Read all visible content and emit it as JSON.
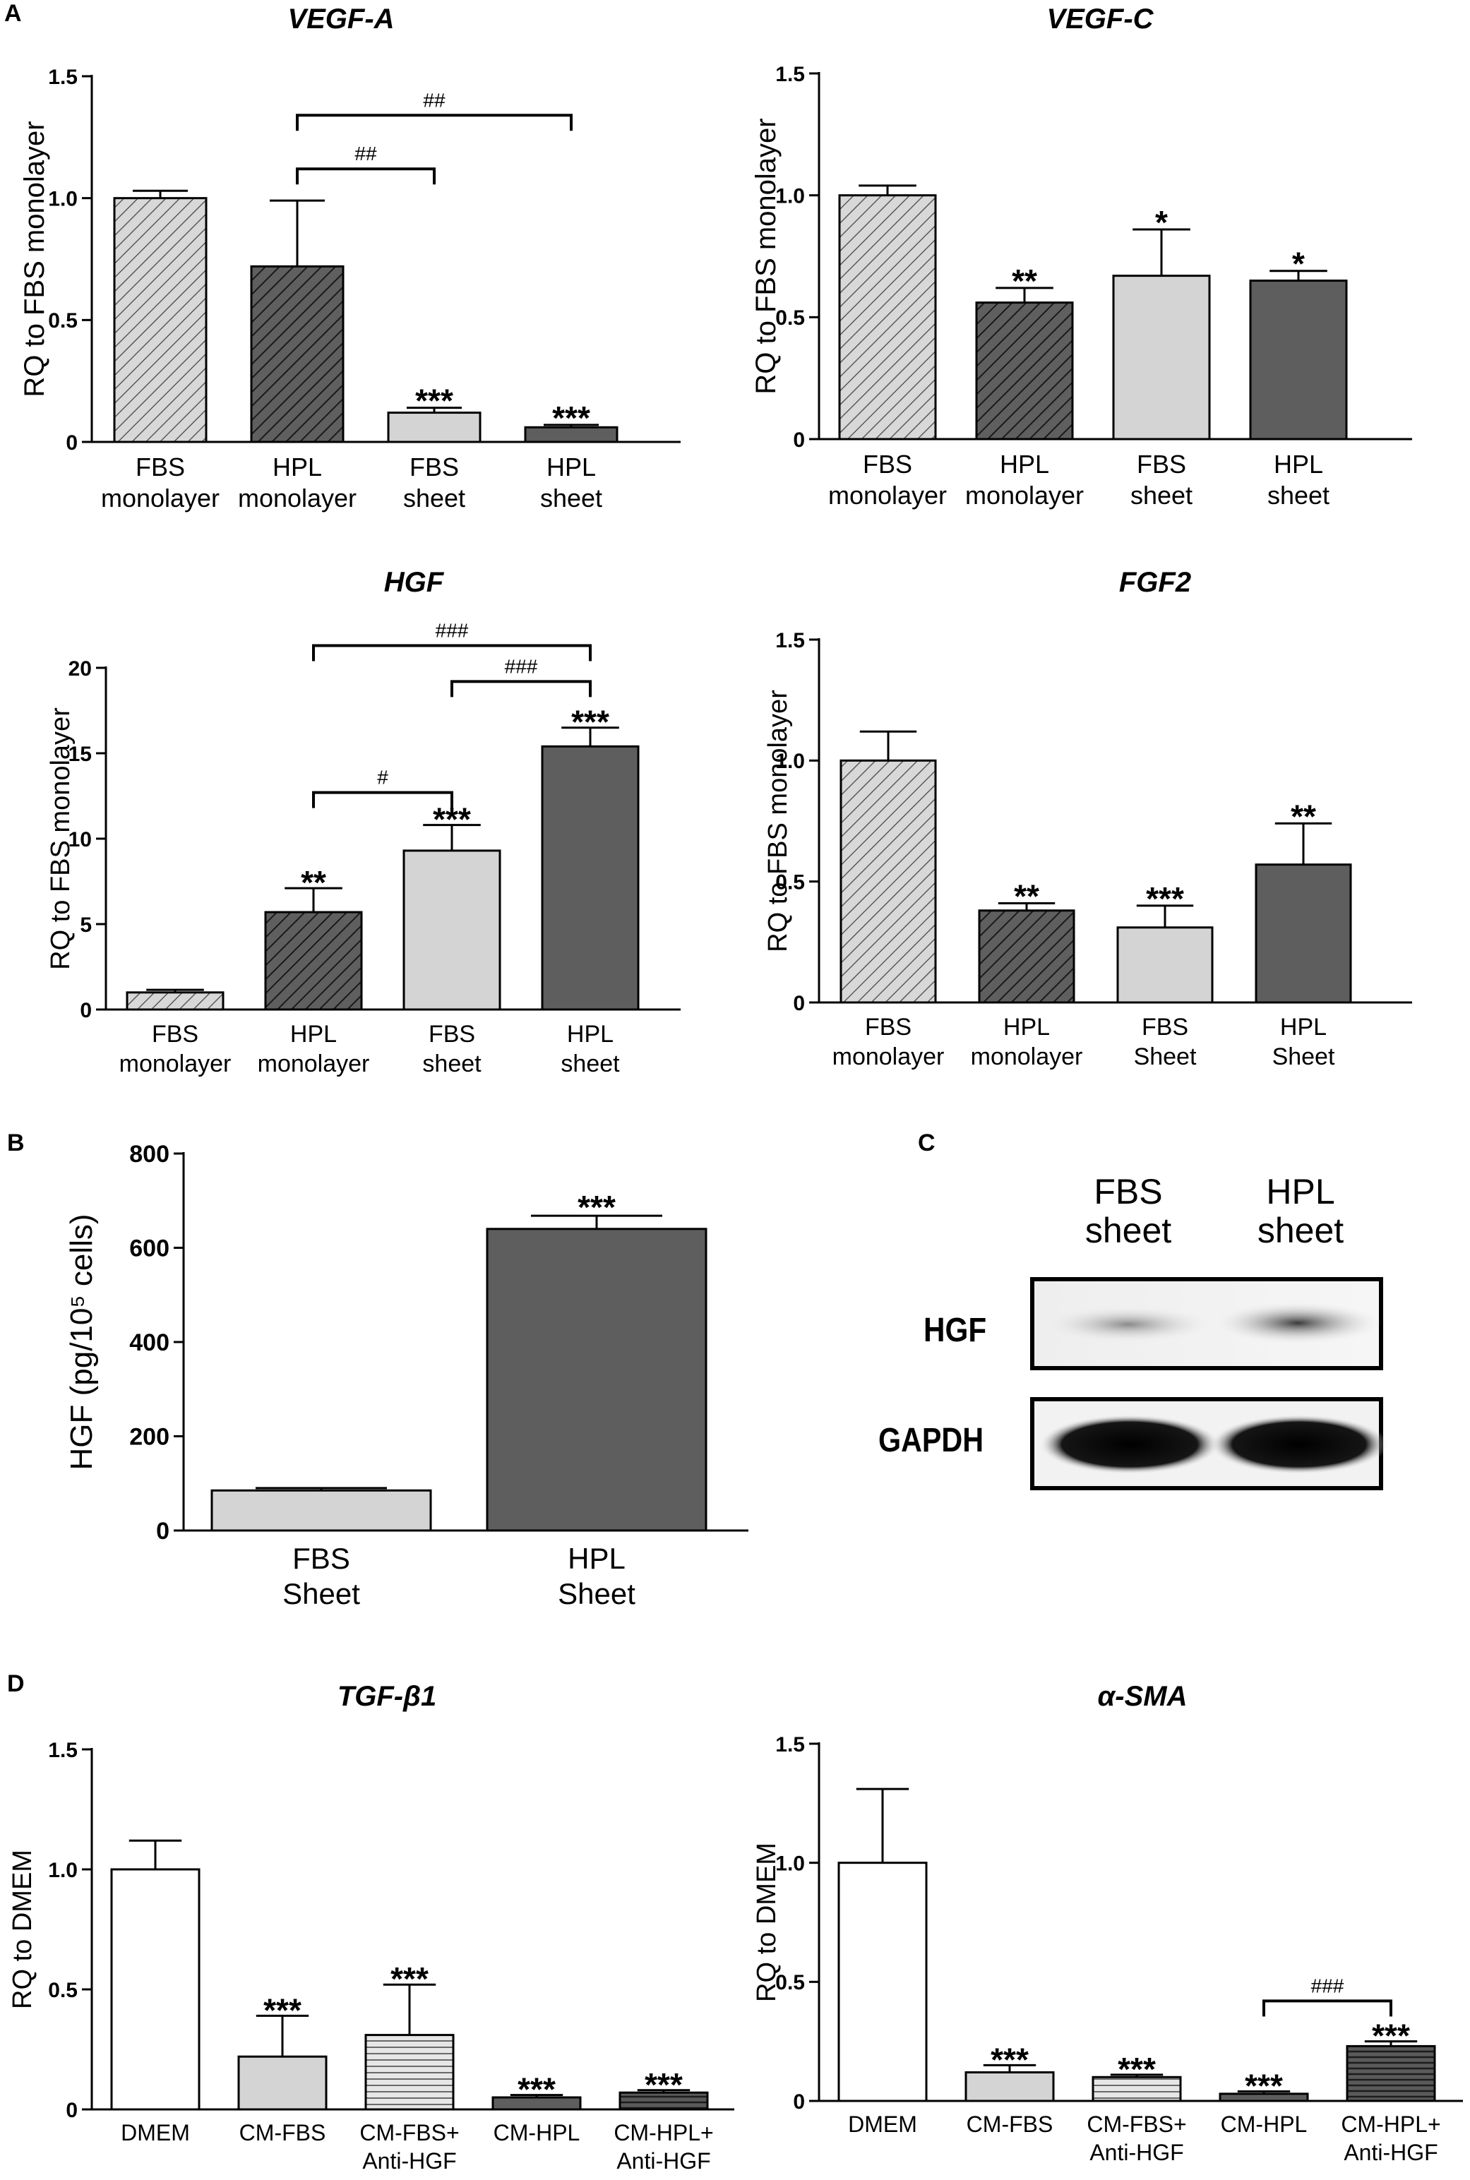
{
  "panels": {
    "A": "A",
    "B": "B",
    "C": "C",
    "D": "D"
  },
  "western_blot": {
    "columns": [
      "FBS sheet",
      "HPL sheet"
    ],
    "col_lines": [
      [
        "FBS",
        "sheet"
      ],
      [
        "HPL",
        "sheet"
      ]
    ],
    "rows": [
      "HGF",
      "GAPDH"
    ]
  },
  "chart_data": [
    {
      "id": "vegfa",
      "type": "bar",
      "title": "VEGF-A",
      "ylabel": "RQ to FBS monolayer",
      "ylim": [
        0,
        1.5
      ],
      "yticks": [
        0,
        0.5,
        1.0,
        1.5
      ],
      "ytick_labels": [
        "0",
        "0.5",
        "1.0",
        "1.5"
      ],
      "categories": [
        [
          "FBS",
          "monolayer"
        ],
        [
          "HPL",
          "monolayer"
        ],
        [
          "FBS",
          "sheet"
        ],
        [
          "HPL",
          "sheet"
        ]
      ],
      "values": [
        1.0,
        0.72,
        0.12,
        0.06
      ],
      "errors": [
        0.03,
        0.27,
        0.02,
        0.01
      ],
      "patterns": [
        "hatch-light",
        "hatch-dark",
        "light",
        "dark"
      ],
      "stars": [
        "",
        "",
        "***",
        "***"
      ],
      "brackets": [
        {
          "from": 1,
          "to": 3,
          "label": "##",
          "level": 1.34
        },
        {
          "from": 1,
          "to": 2,
          "label": "##",
          "level": 1.12
        }
      ]
    },
    {
      "id": "vegfc",
      "type": "bar",
      "title": "VEGF-C",
      "ylabel": "RQ to FBS monolayer",
      "ylim": [
        0,
        1.5
      ],
      "yticks": [
        0,
        0.5,
        1.0,
        1.5
      ],
      "ytick_labels": [
        "0",
        "0.5",
        "1.0",
        "1.5"
      ],
      "categories": [
        [
          "FBS",
          "monolayer"
        ],
        [
          "HPL",
          "monolayer"
        ],
        [
          "FBS",
          "sheet"
        ],
        [
          "HPL",
          "sheet"
        ]
      ],
      "values": [
        1.0,
        0.56,
        0.67,
        0.65
      ],
      "errors": [
        0.04,
        0.06,
        0.19,
        0.04
      ],
      "patterns": [
        "hatch-light",
        "hatch-dark",
        "light",
        "dark"
      ],
      "stars": [
        "",
        "**",
        "*",
        "*"
      ],
      "brackets": []
    },
    {
      "id": "hgf",
      "type": "bar",
      "title": "HGF",
      "ylabel": "RQ to FBS monolayer",
      "ylim": [
        0,
        20
      ],
      "yticks": [
        0,
        5,
        10,
        15,
        20
      ],
      "ytick_labels": [
        "0",
        "5",
        "10",
        "15",
        "20"
      ],
      "categories": [
        [
          "FBS",
          "monolayer"
        ],
        [
          "HPL",
          "monolayer"
        ],
        [
          "FBS",
          "sheet"
        ],
        [
          "HPL",
          "sheet"
        ]
      ],
      "values": [
        1.0,
        5.7,
        9.3,
        15.4
      ],
      "errors": [
        0.15,
        1.4,
        1.5,
        1.1
      ],
      "patterns": [
        "hatch-light",
        "hatch-dark",
        "light",
        "dark"
      ],
      "stars": [
        "",
        "**",
        "***",
        "***"
      ],
      "brackets": [
        {
          "from": 1,
          "to": 3,
          "label": "###",
          "level": 21.3
        },
        {
          "from": 2,
          "to": 3,
          "label": "###",
          "level": 19.2
        },
        {
          "from": 1,
          "to": 2,
          "label": "#",
          "level": 12.7
        }
      ]
    },
    {
      "id": "fgf2",
      "type": "bar",
      "title": "FGF2",
      "ylabel": "RQ to FBS monolayer",
      "ylim": [
        0,
        1.5
      ],
      "yticks": [
        0,
        0.5,
        1.0,
        1.5
      ],
      "ytick_labels": [
        "0",
        "0.5",
        "1.0",
        "1.5"
      ],
      "categories": [
        [
          "FBS",
          "monolayer"
        ],
        [
          "HPL",
          "monolayer"
        ],
        [
          "FBS",
          "Sheet"
        ],
        [
          "HPL",
          "Sheet"
        ]
      ],
      "values": [
        1.0,
        0.38,
        0.31,
        0.57
      ],
      "errors": [
        0.12,
        0.03,
        0.09,
        0.17
      ],
      "patterns": [
        "hatch-light",
        "hatch-dark",
        "light",
        "dark"
      ],
      "stars": [
        "",
        "**",
        "***",
        "**"
      ],
      "brackets": []
    },
    {
      "id": "hgf_elisa",
      "type": "bar",
      "title": "",
      "ylabel": "HGF (pg/10⁵ cells)",
      "ylim": [
        0,
        800
      ],
      "yticks": [
        0,
        200,
        400,
        600,
        800
      ],
      "ytick_labels": [
        "0",
        "200",
        "400",
        "600",
        "800"
      ],
      "categories": [
        [
          "FBS",
          "Sheet"
        ],
        [
          "HPL",
          "Sheet"
        ]
      ],
      "values": [
        85,
        640
      ],
      "errors": [
        5,
        28
      ],
      "patterns": [
        "light",
        "dark"
      ],
      "stars": [
        "",
        "***"
      ],
      "brackets": []
    },
    {
      "id": "tgfb1",
      "type": "bar",
      "title": "TGF-β1",
      "ylabel": "RQ to DMEM",
      "ylim": [
        0,
        1.5
      ],
      "yticks": [
        0,
        0.5,
        1.0,
        1.5
      ],
      "ytick_labels": [
        "0",
        "0.5",
        "1.0",
        "1.5"
      ],
      "categories": [
        [
          "DMEM"
        ],
        [
          "CM-FBS"
        ],
        [
          "CM-FBS+",
          "Anti-HGF"
        ],
        [
          "CM-HPL"
        ],
        [
          "CM-HPL+",
          "Anti-HGF"
        ]
      ],
      "values": [
        1.0,
        0.22,
        0.31,
        0.05,
        0.07
      ],
      "errors": [
        0.12,
        0.17,
        0.21,
        0.01,
        0.01
      ],
      "patterns": [
        "white",
        "light",
        "hstripe-light",
        "dark",
        "hstripe-dark"
      ],
      "stars": [
        "",
        "***",
        "***",
        "***",
        "***"
      ],
      "brackets": []
    },
    {
      "id": "asma",
      "type": "bar",
      "title": "α-SMA",
      "ylabel": "RQ to DMEM",
      "ylim": [
        0,
        1.5
      ],
      "yticks": [
        0,
        0.5,
        1.0,
        1.5
      ],
      "ytick_labels": [
        "0",
        "0.5",
        "1.0",
        "1.5"
      ],
      "categories": [
        [
          "DMEM"
        ],
        [
          "CM-FBS"
        ],
        [
          "CM-FBS+",
          "Anti-HGF"
        ],
        [
          "CM-HPL"
        ],
        [
          "CM-HPL+",
          "Anti-HGF"
        ]
      ],
      "values": [
        1.0,
        0.12,
        0.1,
        0.03,
        0.23
      ],
      "errors": [
        0.31,
        0.03,
        0.01,
        0.01,
        0.02
      ],
      "patterns": [
        "white",
        "light",
        "hstripe-light",
        "dark",
        "hstripe-dark"
      ],
      "stars": [
        "",
        "***",
        "***",
        "***",
        "***"
      ],
      "brackets": [
        {
          "from": 3,
          "to": 4,
          "label": "###",
          "level": 0.42
        }
      ]
    }
  ]
}
